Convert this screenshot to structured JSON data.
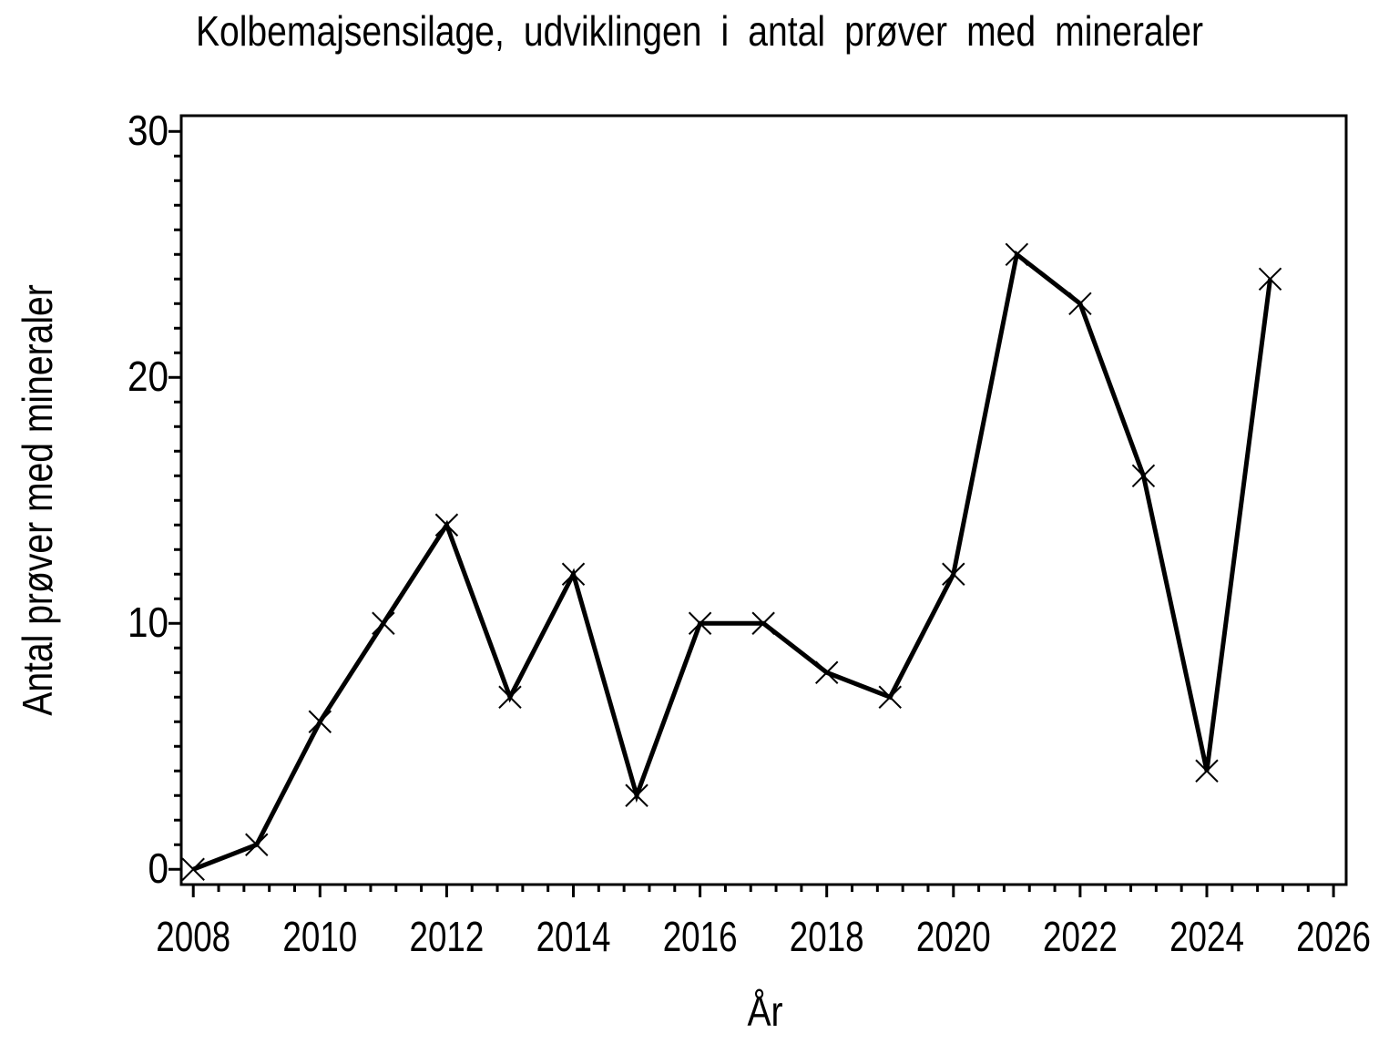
{
  "page": {
    "background": "#ffffff",
    "ink": "#000000"
  },
  "chart_data": {
    "type": "line",
    "title": "Kolbemajsensilage, udviklingen i antal prøver med mineraler",
    "xlabel": "År",
    "ylabel": "Antal prøver med mineraler",
    "x": [
      2008,
      2009,
      2010,
      2011,
      2012,
      2013,
      2014,
      2015,
      2016,
      2017,
      2018,
      2019,
      2020,
      2021,
      2022,
      2023,
      2024,
      2025
    ],
    "values": [
      0,
      1,
      6,
      10,
      14,
      7,
      12,
      3,
      10,
      10,
      8,
      7,
      12,
      25,
      23,
      16,
      4,
      24
    ],
    "marker": "x",
    "line_color": "#000000",
    "xlim": [
      2007.81,
      2026.2
    ],
    "ylim": [
      -0.62,
      30.64
    ],
    "x_major_ticks": [
      2008,
      2010,
      2012,
      2014,
      2016,
      2018,
      2020,
      2022,
      2024,
      2026
    ],
    "x_minor_tick_step": 0.4,
    "y_major_ticks": [
      0,
      10,
      20,
      30
    ],
    "y_minor_tick_step": 1,
    "grid": false,
    "legend": false
  }
}
